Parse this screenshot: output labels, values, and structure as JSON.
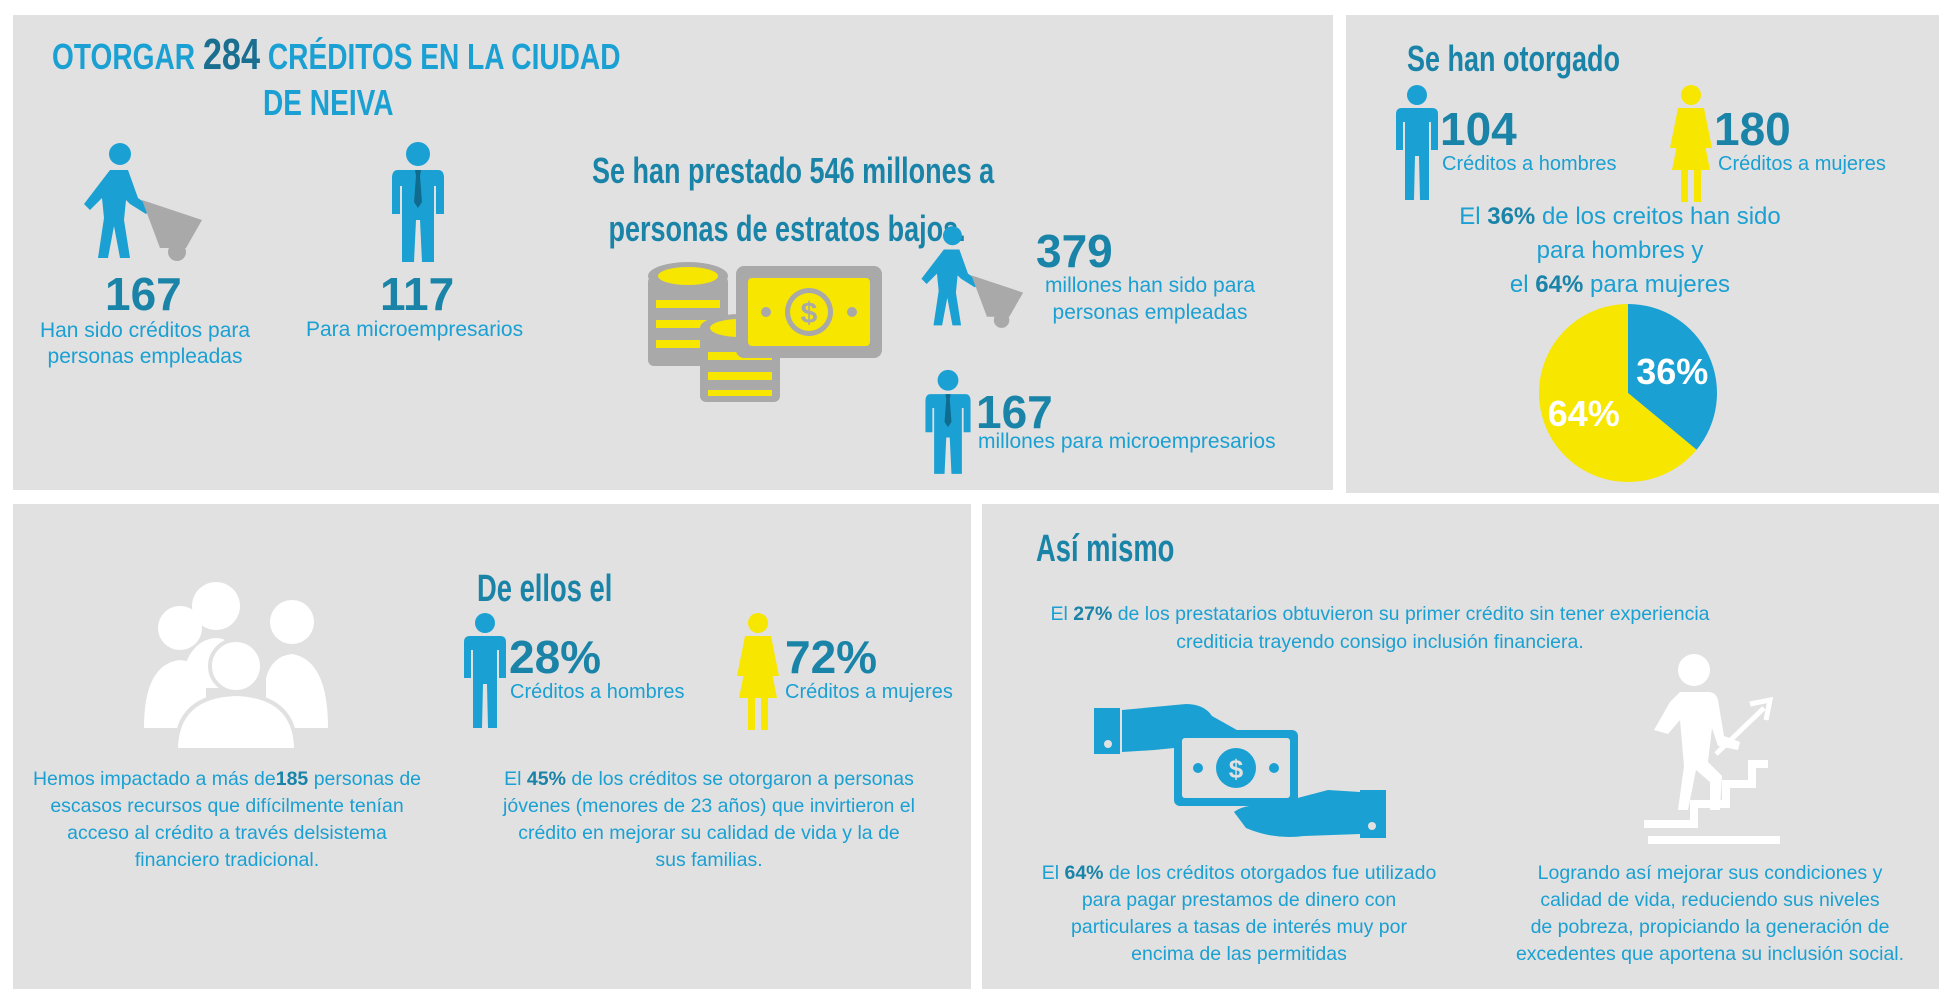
{
  "top_left": {
    "title_part1": "OTORGAR",
    "title_number": "284",
    "title_part2": "CRÉDITOS EN LA CIUDAD",
    "title_line2": "DE NEIVA",
    "employed_count": "167",
    "employed_label_1": "Han sido créditos para",
    "employed_label_2": "personas empleadas",
    "micro_count": "117",
    "micro_label": "Para microempresarios",
    "loaned_title_1": "Se han prestado 546 millones a",
    "loaned_title_2": "personas de estratos bajos.",
    "employed_amount": "379",
    "employed_amount_label_1": "millones han sido para",
    "employed_amount_label_2": "personas empleadas",
    "micro_amount": "167",
    "micro_amount_label": "millones para microempresarios"
  },
  "top_right": {
    "title": "Se han otorgado",
    "men_count": "104",
    "men_label": "Créditos a hombres",
    "women_count": "180",
    "women_label": "Créditos a mujeres",
    "stat_1_pre": "El ",
    "stat_1_pct": "36%",
    "stat_1_post": " de los creitos han sido",
    "stat_2": "para hombres y",
    "stat_3_pre": "el ",
    "stat_3_pct": "64%",
    "stat_3_post": " para mujeres",
    "pie_label_women": "64%",
    "pie_label_men": "36%"
  },
  "chart_data": {
    "type": "pie",
    "categories": [
      "hombres",
      "mujeres"
    ],
    "values": [
      36,
      64
    ],
    "colors": [
      "#1aa0d2",
      "#f7e600"
    ],
    "title": ""
  },
  "bottom_left": {
    "title": "De ellos el",
    "men_pct": "28%",
    "men_label": "Créditos a hombres",
    "women_pct": "72%",
    "women_label": "Créditos a mujeres",
    "impact_1_pre": "Hemos impactado a más de",
    "impact_1_num": "185",
    "impact_1_post": " personas de",
    "impact_2": "escasos recursos que difícilmente tenían",
    "impact_3": "acceso al crédito a través delsistema",
    "impact_4": "financiero tradicional.",
    "youth_1_pre": "El ",
    "youth_1_pct": "45%",
    "youth_1_post": " de los créditos se otorgaron a personas",
    "youth_2": "jóvenes (menores de 23 años) que invirtieron el",
    "youth_3": "crédito en mejorar su calidad de vida y la de",
    "youth_4": "sus familias."
  },
  "bottom_right": {
    "title": "Así mismo",
    "first_1_pre": "El ",
    "first_1_pct": "27%",
    "first_1_post": " de los prestatarios obtuvieron su primer crédito sin tener experiencia",
    "first_2": "crediticia trayendo consigo inclusión financiera.",
    "debt_1_pre": "El ",
    "debt_1_pct": "64%",
    "debt_1_post": " de los créditos otorgados fue utilizado",
    "debt_2": "para pagar prestamos de dinero con",
    "debt_3": "particulares a tasas de interés muy por",
    "debt_4": "encima de las permitidas",
    "improve_1": "Logrando así mejorar sus condiciones y",
    "improve_2": "calidad de vida, reduciendo sus niveles",
    "improve_3": "de pobreza, propiciando la generación de",
    "improve_4": "excedentes que aportena su inclusión social."
  },
  "colors": {
    "panel_bg": "#e1e1e1",
    "blue": "#1aa0d2",
    "dark_blue": "#1a83a8",
    "yellow": "#f7e600",
    "gray": "#a9a9a9",
    "white": "#ffffff"
  },
  "icons": [
    "worker-wheelbarrow-icon",
    "businessman-icon",
    "coins-icon",
    "banknote-icon",
    "man-icon",
    "woman-icon",
    "group-icon",
    "hand-money-icon",
    "stairs-climb-icon"
  ]
}
